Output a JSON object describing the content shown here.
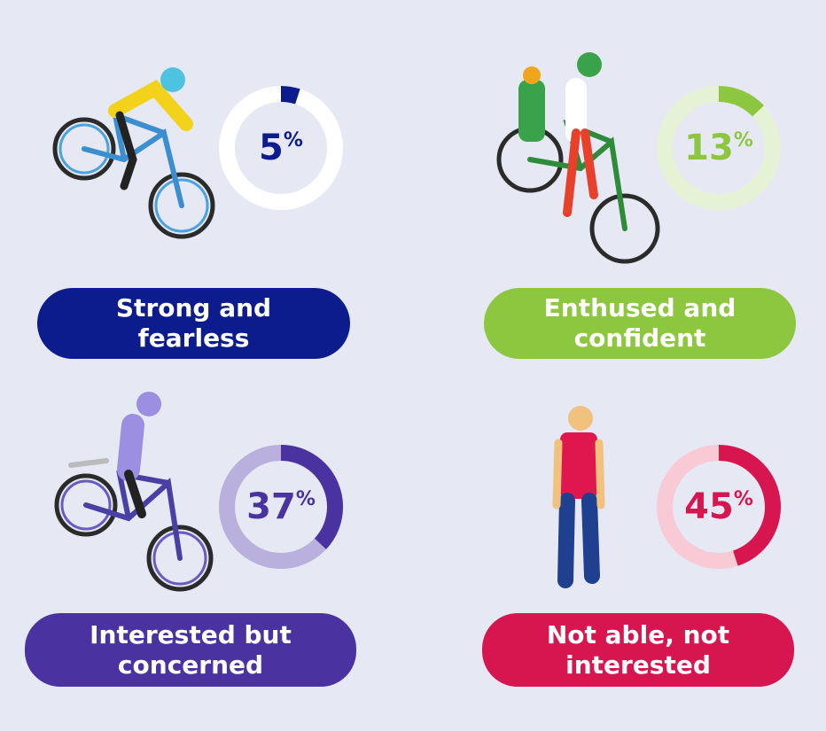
{
  "chart_data": [
    {
      "type": "donut",
      "title": "Strong and fearless",
      "values": [
        5
      ],
      "value_labels": [
        "5%"
      ],
      "color": "#0d1c8c",
      "track_color": "#ffffff"
    },
    {
      "type": "donut",
      "title": "Enthused and confident",
      "values": [
        13
      ],
      "value_labels": [
        "13%"
      ],
      "color": "#8dc63f",
      "track_color": "#e6f2d6"
    },
    {
      "type": "donut",
      "title": "Interested but concerned",
      "values": [
        37
      ],
      "value_labels": [
        "37%"
      ],
      "color": "#4a33a0",
      "track_color": "#b9b0dd"
    },
    {
      "type": "donut",
      "title": "Not able, not interested",
      "values": [
        45
      ],
      "value_labels": [
        "45%"
      ],
      "color": "#d7154f",
      "track_color": "#f8cad6"
    }
  ]
}
